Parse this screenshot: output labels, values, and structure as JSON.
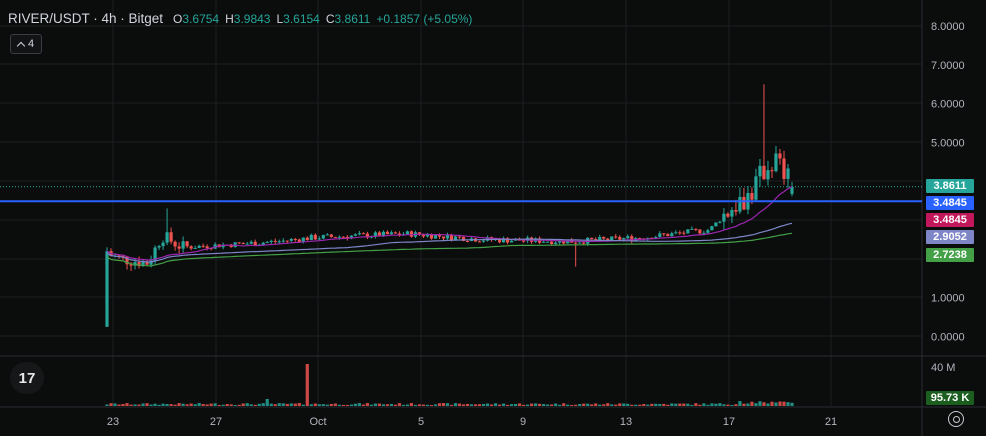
{
  "legend": {
    "symbol": "RIVER/USDT · 4h · Bitget",
    "o_label": "O",
    "o_value": "3.6754",
    "h_label": "H",
    "h_value": "3.9843",
    "l_label": "L",
    "l_value": "3.6154",
    "c_label": "C",
    "c_value": "3.8611",
    "change": "+0.1857 (+5.05%)"
  },
  "indicator_toggle": {
    "count": "4",
    "icon": "chevron-down-icon"
  },
  "price_axis": {
    "ticks": [
      "8.0000",
      "7.0000",
      "6.0000",
      "5.0000",
      "1.0000",
      "0.0000"
    ],
    "tick_values": [
      8,
      7,
      6,
      5,
      1,
      0
    ],
    "tags": [
      {
        "label": "3.8611",
        "bg": "#26a69a"
      },
      {
        "label": "3.4845",
        "bg": "#2962ff"
      },
      {
        "label": "3.4845",
        "bg": "#c2185b"
      },
      {
        "label": "2.9052",
        "bg": "#7e86c8"
      },
      {
        "label": "2.7238",
        "bg": "#43a047"
      }
    ]
  },
  "volume_axis": {
    "tick": "40 M",
    "tag": "95.73 K",
    "tag_bg": "#1b5e20"
  },
  "time_axis": {
    "labels": [
      "23",
      "27",
      "Oct",
      "5",
      "9",
      "13",
      "17",
      "21"
    ]
  },
  "horizontal_line": {
    "value": 3.4845,
    "color": "#2962ff"
  },
  "colors": {
    "up": "#26a69a",
    "down": "#ef5350",
    "bg": "#0b0c0c",
    "grid": "#1c1e22",
    "ma_slow": "#9c27b0",
    "ma_long": "#7e86c8",
    "ma_longest": "#43a047"
  },
  "icons": {
    "logo": "tradingview-logo",
    "settings": "gear-icon"
  },
  "logo_text": "17",
  "chart_data": {
    "type": "candlestick",
    "title": "RIVER/USDT · 4h · Bitget",
    "y_range": [
      0,
      8.5
    ],
    "x_range": [
      "Sep 22",
      "Oct 21"
    ],
    "ohlc_sample": [
      {
        "t": "Sep 22",
        "o": 0.25,
        "h": 2.3,
        "l": 0.25,
        "c": 2.2
      },
      {
        "t": "Sep 24",
        "o": 1.9,
        "h": 2.2,
        "l": 1.7,
        "c": 2.0
      },
      {
        "t": "Sep 26",
        "o": 2.4,
        "h": 3.3,
        "l": 2.0,
        "c": 2.6
      },
      {
        "t": "Oct 1",
        "o": 2.4,
        "h": 2.7,
        "l": 2.2,
        "c": 2.5
      },
      {
        "t": "Oct 5",
        "o": 2.7,
        "h": 2.9,
        "l": 2.6,
        "c": 2.8
      },
      {
        "t": "Oct 9",
        "o": 2.5,
        "h": 2.7,
        "l": 2.2,
        "c": 2.4
      },
      {
        "t": "Oct 11",
        "o": 2.3,
        "h": 2.6,
        "l": 1.8,
        "c": 2.4
      },
      {
        "t": "Oct 17",
        "o": 3.0,
        "h": 4.4,
        "l": 2.9,
        "c": 4.0
      },
      {
        "t": "Oct 19",
        "o": 4.4,
        "h": 6.5,
        "l": 3.5,
        "c": 4.6
      },
      {
        "t": "Oct 20",
        "o": 3.67,
        "h": 3.98,
        "l": 3.62,
        "c": 3.86
      }
    ],
    "last_close": 3.8611
  }
}
